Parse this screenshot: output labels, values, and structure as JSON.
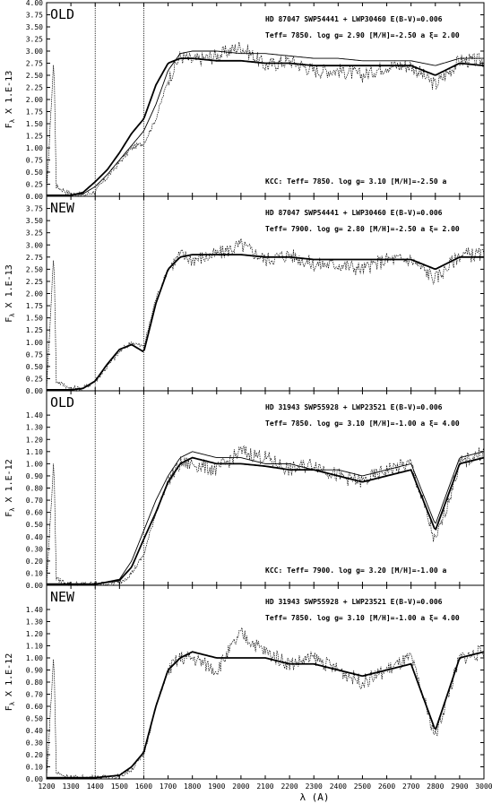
{
  "chart_data": [
    {
      "type": "line",
      "panel_tag": "OLD",
      "ylabel": "F_λ X  1.E-13",
      "ylabel_sub": "λ",
      "ylabel_head": "F",
      "ylabel_tail": " X  1.E-13",
      "ylim": [
        0,
        4.0
      ],
      "yticks": [
        "0.00",
        "0.25",
        "0.50",
        "0.75",
        "1.00",
        "1.25",
        "1.50",
        "1.75",
        "2.00",
        "2.25",
        "2.50",
        "2.75",
        "3.00",
        "3.25",
        "3.50",
        "3.75",
        "4.00"
      ],
      "info_line1": "HD 87047  SWP54441 + LWP30460   E(B-V)=0.006",
      "info_line2": "Teff=  7850.  log g= 2.90 [M/H]=-2.50 a  ξ= 2.00",
      "info_bottom": "KCC: Teff=  7850.  log g= 3.10 [M/H]=-2.50 a",
      "series": [
        {
          "style": "observed",
          "x": [
            1200,
            1230,
            1240,
            1300,
            1350,
            1400,
            1450,
            1500,
            1550,
            1600,
            1650,
            1700,
            1750,
            1800,
            1900,
            2000,
            2100,
            2200,
            2300,
            2400,
            2500,
            2600,
            2700,
            2800,
            2900,
            3000
          ],
          "y": [
            0.05,
            2.9,
            0.2,
            0.05,
            0.02,
            0.1,
            0.4,
            0.7,
            1.0,
            1.1,
            1.6,
            2.4,
            2.9,
            2.8,
            2.9,
            3.1,
            2.7,
            2.8,
            2.6,
            2.6,
            2.5,
            2.7,
            2.7,
            2.3,
            2.8,
            2.8
          ]
        },
        {
          "style": "model-thin",
          "x": [
            1200,
            1300,
            1350,
            1400,
            1450,
            1500,
            1550,
            1600,
            1650,
            1700,
            1750,
            1800,
            1900,
            2000,
            2100,
            2200,
            2300,
            2400,
            2500,
            2600,
            2700,
            2800,
            2900,
            3000
          ],
          "y": [
            0.02,
            0.02,
            0.05,
            0.2,
            0.45,
            0.75,
            1.05,
            1.35,
            1.9,
            2.6,
            2.95,
            3.0,
            3.0,
            2.95,
            2.95,
            2.9,
            2.85,
            2.85,
            2.8,
            2.8,
            2.8,
            2.7,
            2.85,
            2.85
          ]
        },
        {
          "style": "model-thick",
          "x": [
            1200,
            1300,
            1350,
            1400,
            1450,
            1500,
            1550,
            1600,
            1650,
            1700,
            1750,
            1800,
            1900,
            2000,
            2100,
            2200,
            2300,
            2400,
            2500,
            2600,
            2700,
            2800,
            2900,
            3000
          ],
          "y": [
            0.02,
            0.02,
            0.08,
            0.3,
            0.55,
            0.9,
            1.3,
            1.6,
            2.3,
            2.75,
            2.85,
            2.85,
            2.8,
            2.8,
            2.75,
            2.75,
            2.7,
            2.7,
            2.7,
            2.7,
            2.7,
            2.5,
            2.75,
            2.7
          ]
        }
      ]
    },
    {
      "type": "line",
      "panel_tag": "NEW",
      "ylabel": "F_λ X  1.E-13",
      "ylabel_sub": "λ",
      "ylabel_head": "F",
      "ylabel_tail": " X  1.E-13",
      "ylim": [
        0,
        4.0
      ],
      "yticks": [
        "0.00",
        "0.25",
        "0.50",
        "0.75",
        "1.00",
        "1.25",
        "1.50",
        "1.75",
        "2.00",
        "2.25",
        "2.50",
        "2.75",
        "3.00",
        "3.25",
        "3.50",
        "3.75"
      ],
      "info_line1": "HD 87047  SWP54441 + LWP30460   E(B-V)=0.006",
      "info_line2": "Teff=  7900.  log g= 2.80 [M/H]=-2.50 a  ξ= 2.00",
      "info_bottom": "",
      "series": [
        {
          "style": "observed",
          "x": [
            1200,
            1230,
            1240,
            1300,
            1350,
            1400,
            1450,
            1500,
            1550,
            1600,
            1650,
            1700,
            1750,
            1800,
            1900,
            2000,
            2100,
            2200,
            2300,
            2400,
            2500,
            2600,
            2700,
            2800,
            2900,
            3000
          ],
          "y": [
            0.05,
            2.9,
            0.2,
            0.05,
            0.05,
            0.2,
            0.5,
            0.8,
            1.0,
            0.9,
            1.9,
            2.5,
            2.8,
            2.7,
            2.8,
            3.0,
            2.7,
            2.8,
            2.6,
            2.6,
            2.5,
            2.7,
            2.7,
            2.3,
            2.8,
            2.8
          ]
        },
        {
          "style": "model-thick",
          "x": [
            1200,
            1300,
            1350,
            1400,
            1450,
            1500,
            1550,
            1600,
            1650,
            1700,
            1750,
            1800,
            1900,
            2000,
            2100,
            2200,
            2300,
            2400,
            2500,
            2600,
            2700,
            2800,
            2900,
            3000
          ],
          "y": [
            0.02,
            0.02,
            0.05,
            0.2,
            0.55,
            0.85,
            0.95,
            0.8,
            1.8,
            2.5,
            2.75,
            2.8,
            2.8,
            2.8,
            2.75,
            2.75,
            2.7,
            2.7,
            2.7,
            2.7,
            2.7,
            2.5,
            2.75,
            2.75
          ]
        }
      ]
    },
    {
      "type": "line",
      "panel_tag": "OLD",
      "ylabel": "F_λ X  1.E-12",
      "ylabel_sub": "λ",
      "ylabel_head": "F",
      "ylabel_tail": " X  1.E-12",
      "ylim": [
        0,
        1.6
      ],
      "yticks": [
        "0.00",
        "0.10",
        "0.20",
        "0.30",
        "0.40",
        "0.50",
        "0.60",
        "0.70",
        "0.80",
        "0.90",
        "1.00",
        "1.10",
        "1.20",
        "1.30",
        "1.40"
      ],
      "info_line1": "HD 31943  SWP55928 + LWP23521  E(B-V)=0.006",
      "info_line2": "Teff=  7850.  log g= 3.10 [M/H]=-1.00 a  ξ= 4.00",
      "info_bottom": "KCC: Teff=  7900.  log g= 3.20 [M/H]=-1.00 a",
      "series": [
        {
          "style": "observed",
          "x": [
            1200,
            1230,
            1240,
            1300,
            1400,
            1500,
            1550,
            1600,
            1650,
            1700,
            1750,
            1800,
            1900,
            2000,
            2100,
            2200,
            2300,
            2400,
            2500,
            2600,
            2700,
            2800,
            2900,
            3000
          ],
          "y": [
            0.01,
            1.05,
            0.05,
            0.01,
            0.01,
            0.02,
            0.1,
            0.25,
            0.6,
            0.85,
            1.0,
            1.0,
            0.95,
            1.1,
            1.05,
            0.95,
            1.0,
            0.9,
            0.85,
            0.95,
            1.0,
            0.35,
            1.0,
            1.1
          ]
        },
        {
          "style": "model-thin",
          "x": [
            1200,
            1400,
            1500,
            1550,
            1600,
            1650,
            1700,
            1750,
            1800,
            1900,
            2000,
            2100,
            2200,
            2300,
            2400,
            2500,
            2600,
            2700,
            2800,
            2900,
            3000
          ],
          "y": [
            0.01,
            0.01,
            0.05,
            0.2,
            0.45,
            0.7,
            0.9,
            1.05,
            1.1,
            1.05,
            1.05,
            1.0,
            1.0,
            0.95,
            0.95,
            0.9,
            0.95,
            1.0,
            0.5,
            1.05,
            1.1
          ]
        },
        {
          "style": "model-thick",
          "x": [
            1200,
            1400,
            1500,
            1550,
            1600,
            1650,
            1700,
            1750,
            1800,
            1900,
            2000,
            2100,
            2200,
            2300,
            2400,
            2500,
            2600,
            2700,
            2800,
            2900,
            3000
          ],
          "y": [
            0.01,
            0.01,
            0.04,
            0.15,
            0.38,
            0.6,
            0.85,
            1.0,
            1.05,
            1.0,
            1.0,
            0.98,
            0.95,
            0.95,
            0.9,
            0.85,
            0.9,
            0.95,
            0.45,
            1.0,
            1.05
          ]
        }
      ]
    },
    {
      "type": "line",
      "panel_tag": "NEW",
      "ylabel": "F_λ X  1.E-12",
      "ylabel_sub": "λ",
      "ylabel_head": "F",
      "ylabel_tail": " X  1.E-12",
      "ylim": [
        0,
        1.6
      ],
      "yticks": [
        "0.00",
        "0.10",
        "0.20",
        "0.30",
        "0.40",
        "0.50",
        "0.60",
        "0.70",
        "0.80",
        "0.90",
        "1.00",
        "1.10",
        "1.20",
        "1.30",
        "1.40"
      ],
      "xticks": [
        "1200",
        "1300",
        "1400",
        "1500",
        "1600",
        "1700",
        "1800",
        "1900",
        "2000",
        "2100",
        "2200",
        "2300",
        "2400",
        "2500",
        "2600",
        "2700",
        "2800",
        "2900",
        "3000"
      ],
      "xlim": [
        1200,
        3000
      ],
      "xlabel": "λ (A)",
      "info_line1": "HD 31943  SWP55928 + LWP23521  E(B-V)=0.006",
      "info_line2": "Teff=  7850.  log g= 3.10 [M/H]=-1.00 a  ξ= 4.00",
      "info_bottom": "",
      "series": [
        {
          "style": "observed",
          "x": [
            1200,
            1230,
            1240,
            1300,
            1400,
            1500,
            1550,
            1600,
            1650,
            1700,
            1750,
            1800,
            1900,
            2000,
            2100,
            2200,
            2300,
            2400,
            2500,
            2600,
            2700,
            2800,
            2900,
            3000
          ],
          "y": [
            0.01,
            1.05,
            0.05,
            0.01,
            0.01,
            0.02,
            0.08,
            0.2,
            0.6,
            0.9,
            1.0,
            1.0,
            0.9,
            1.2,
            1.05,
            0.95,
            1.0,
            0.9,
            0.8,
            0.9,
            1.0,
            0.35,
            1.0,
            1.05
          ]
        },
        {
          "style": "model-thick",
          "x": [
            1200,
            1400,
            1500,
            1550,
            1600,
            1650,
            1700,
            1750,
            1800,
            1900,
            2000,
            2100,
            2200,
            2300,
            2400,
            2500,
            2600,
            2700,
            2800,
            2900,
            3000
          ],
          "y": [
            0.01,
            0.01,
            0.03,
            0.1,
            0.22,
            0.6,
            0.9,
            1.0,
            1.05,
            1.0,
            1.0,
            1.0,
            0.95,
            0.95,
            0.9,
            0.85,
            0.9,
            0.95,
            0.4,
            1.0,
            1.05
          ]
        }
      ]
    }
  ],
  "vlines": [
    1400,
    1600
  ]
}
